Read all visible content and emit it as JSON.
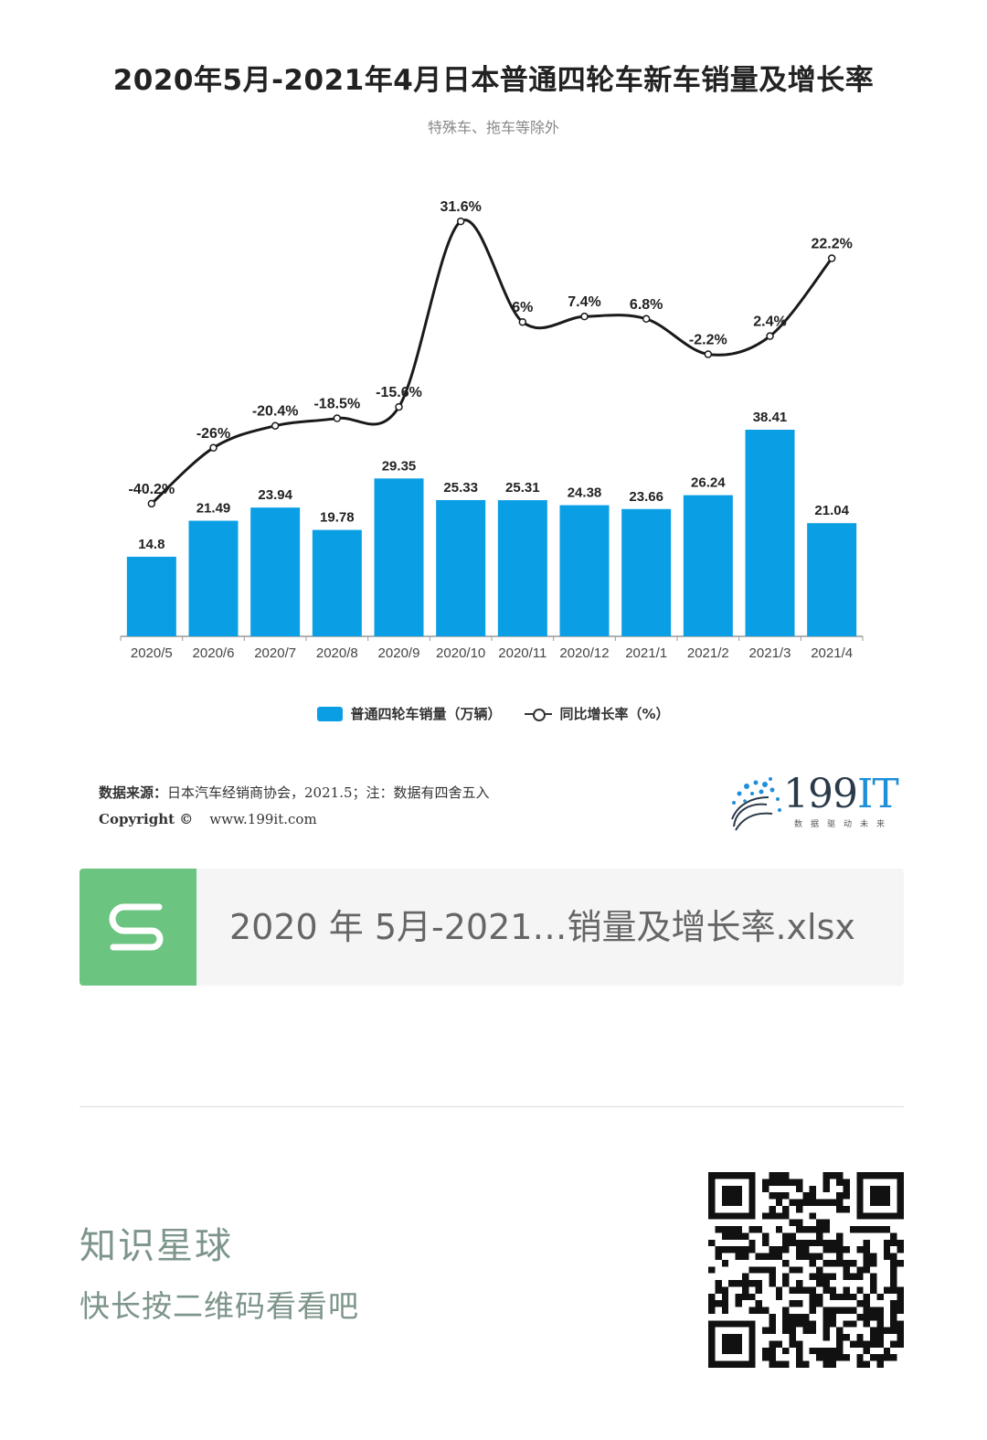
{
  "chart_data": {
    "type": "bar",
    "title": "2020年5月-2021年4月日本普通四轮车新车销量及增长率",
    "subtitle": "特殊车、拖车等除外",
    "categories": [
      "2020/5",
      "2020/6",
      "2020/7",
      "2020/8",
      "2020/9",
      "2020/10",
      "2020/11",
      "2020/12",
      "2021/1",
      "2021/2",
      "2021/3",
      "2021/4"
    ],
    "series": [
      {
        "name": "普通四轮车销量（万辆）",
        "type": "bar",
        "values": [
          14.8,
          21.49,
          23.94,
          19.78,
          29.35,
          25.33,
          25.31,
          24.38,
          23.66,
          26.24,
          38.41,
          21.04
        ],
        "labels": [
          "14.8",
          "21.49",
          "23.94",
          "19.78",
          "29.35",
          "25.33",
          "25.31",
          "24.38",
          "23.66",
          "26.24",
          "38.41",
          "21.04"
        ],
        "color": "#0A9FE5"
      },
      {
        "name": "同比增长率（%）",
        "type": "line",
        "values": [
          -40.2,
          -26,
          -20.4,
          -18.5,
          -15.6,
          31.6,
          6,
          7.4,
          6.8,
          -2.2,
          2.4,
          22.2
        ],
        "labels": [
          "-40.2%",
          "-26%",
          "-20.4%",
          "-18.5%",
          "-15.6%",
          "31.6%",
          "6%",
          "7.4%",
          "6.8%",
          "-2.2%",
          "2.4%",
          "22.2%"
        ],
        "color": "#1a1a1a"
      }
    ],
    "legend_position": "bottom",
    "grid": false
  },
  "source": {
    "label": "数据来源：",
    "text": "日本汽车经销商协会，2021.5；注：数据有四舍五入"
  },
  "copyright": {
    "label": "Copyright ©",
    "url": "www.199it.com"
  },
  "brand": {
    "name_number": "199",
    "name_letters": "IT",
    "slogan": "数据驱动未来"
  },
  "file": {
    "icon": "spreadsheet-s-icon",
    "name": "2020 年 5月-2021…销量及增长率.xlsx"
  },
  "promo": {
    "title": "知识星球",
    "subtitle": "快长按二维码看看吧"
  }
}
